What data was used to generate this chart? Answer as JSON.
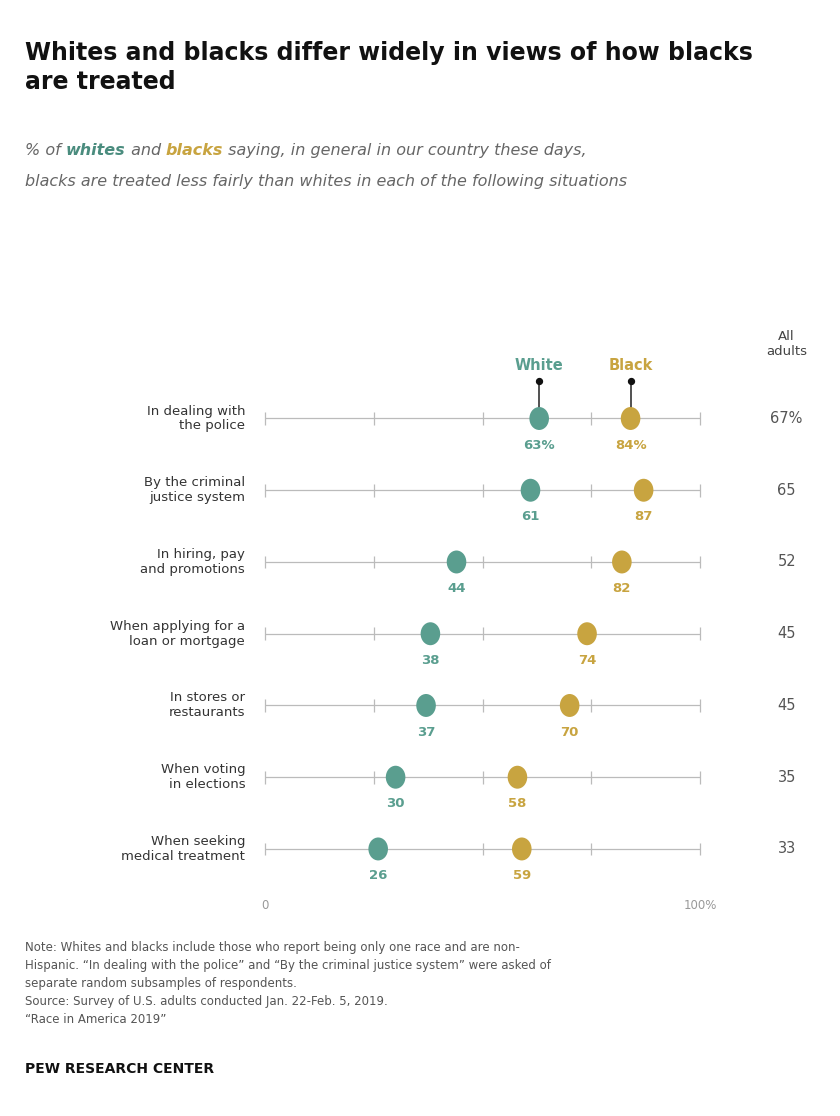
{
  "title": "Whites and blacks differ widely in views of how blacks\nare treated",
  "categories": [
    "In dealing with\nthe police",
    "By the criminal\njustice system",
    "In hiring, pay\nand promotions",
    "When applying for a\nloan or mortgage",
    "In stores or\nrestaurants",
    "When voting\nin elections",
    "When seeking\nmedical treatment"
  ],
  "white_values": [
    63,
    61,
    44,
    38,
    37,
    30,
    26
  ],
  "black_values": [
    84,
    87,
    82,
    74,
    70,
    58,
    59
  ],
  "all_adults": [
    "67%",
    "65",
    "52",
    "45",
    "45",
    "35",
    "33"
  ],
  "white_color": "#5a9e8f",
  "black_color": "#c8a440",
  "line_color": "#bbbbbb",
  "tick_color": "#aaaaaa",
  "right_panel_color": "#eeebe2",
  "background_color": "#ffffff",
  "note_text": "Note: Whites and blacks include those who report being only one race and are non-\nHispanic. “In dealing with the police” and “By the criminal justice system” were asked of\nseparate random subsamples of respondents.\nSource: Survey of U.S. adults conducted Jan. 22-Feb. 5, 2019.\n“Race in America 2019”",
  "source_bold": "PEW RESEARCH CENTER",
  "subtitle_color": "#666666",
  "whites_color": "#4a8c7e",
  "blacks_color": "#c8a440"
}
